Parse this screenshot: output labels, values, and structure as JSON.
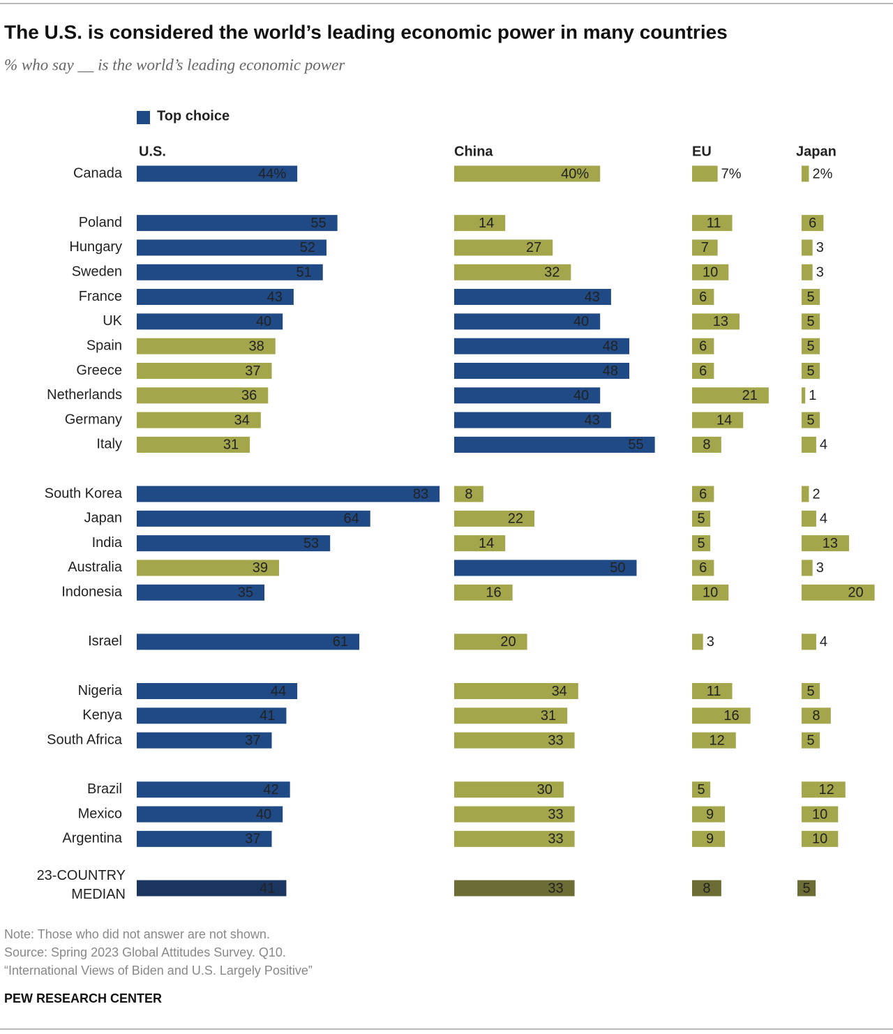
{
  "chart_data": {
    "type": "bar",
    "title": "The U.S. is considered the world’s leading economic power in many countries",
    "subtitle": "% who say __ is the world’s leading economic power",
    "legend": "Top choice",
    "top_color": "#1f4a85",
    "other_color": "#a3a64b",
    "summary_row": true,
    "summary_top_color": "#1a3560",
    "summary_other_color": "#6b6d35",
    "categories": [
      "Canada",
      null,
      "Poland",
      "Hungary",
      "Sweden",
      "France",
      "UK",
      "Spain",
      "Greece",
      "Netherlands",
      "Germany",
      "Italy",
      null,
      "South Korea",
      "Japan",
      "India",
      "Australia",
      "Indonesia",
      null,
      "Israel",
      null,
      "Nigeria",
      "Kenya",
      "South Africa",
      null,
      "Brazil",
      "Mexico",
      "Argentina",
      null,
      "23-COUNTRY MEDIAN"
    ],
    "series": [
      {
        "name": "U.S.",
        "values": [
          44,
          null,
          55,
          52,
          51,
          43,
          40,
          38,
          37,
          36,
          34,
          31,
          null,
          83,
          64,
          53,
          39,
          35,
          null,
          61,
          null,
          44,
          41,
          37,
          null,
          42,
          40,
          37,
          null,
          41
        ],
        "value_labels": [
          "44%",
          null,
          null,
          null,
          null,
          null,
          null,
          null,
          null,
          null,
          null,
          null,
          null,
          null,
          null,
          null,
          null,
          null,
          null,
          null,
          null,
          null,
          null,
          null,
          null,
          null,
          null,
          null,
          null,
          null
        ]
      },
      {
        "name": "China",
        "values": [
          40,
          null,
          14,
          27,
          32,
          43,
          40,
          48,
          48,
          40,
          43,
          55,
          null,
          8,
          22,
          14,
          50,
          16,
          null,
          20,
          null,
          34,
          31,
          33,
          null,
          30,
          33,
          33,
          null,
          33
        ],
        "value_labels": [
          "40%",
          null,
          null,
          null,
          null,
          null,
          null,
          null,
          null,
          null,
          null,
          null,
          null,
          null,
          null,
          null,
          null,
          null,
          null,
          null,
          null,
          null,
          null,
          null,
          null,
          null,
          null,
          null,
          null,
          null
        ]
      },
      {
        "name": "EU",
        "values": [
          7,
          null,
          11,
          7,
          10,
          6,
          13,
          6,
          6,
          21,
          14,
          8,
          null,
          6,
          5,
          5,
          6,
          10,
          null,
          3,
          null,
          11,
          16,
          12,
          null,
          5,
          9,
          9,
          null,
          8
        ],
        "value_labels": [
          "7%",
          null,
          null,
          null,
          null,
          null,
          null,
          null,
          null,
          null,
          null,
          null,
          null,
          null,
          null,
          null,
          null,
          null,
          null,
          null,
          null,
          null,
          null,
          null,
          null,
          null,
          null,
          null,
          null,
          null
        ]
      },
      {
        "name": "Japan",
        "values": [
          2,
          null,
          6,
          3,
          3,
          5,
          5,
          5,
          5,
          1,
          5,
          4,
          null,
          2,
          4,
          13,
          3,
          20,
          null,
          4,
          null,
          5,
          8,
          5,
          null,
          12,
          10,
          10,
          null,
          5
        ],
        "value_labels": [
          "2%",
          null,
          null,
          null,
          null,
          null,
          null,
          null,
          null,
          null,
          null,
          null,
          null,
          null,
          null,
          null,
          null,
          null,
          null,
          null,
          null,
          null,
          null,
          null,
          null,
          null,
          null,
          null,
          null,
          null
        ]
      }
    ],
    "notes": [
      "Note: Those who did not answer are not shown.",
      "Source: Spring 2023 Global Attitudes Survey. Q10.",
      "“International Views of Biden and U.S. Largely Positive”"
    ],
    "source_org": "PEW RESEARCH CENTER"
  }
}
